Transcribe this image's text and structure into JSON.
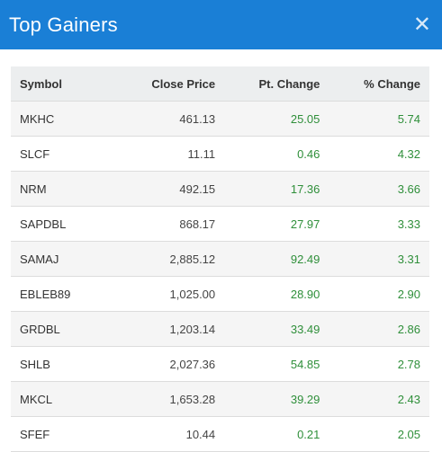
{
  "header": {
    "title": "Top Gainers",
    "close_icon": "close-icon"
  },
  "table": {
    "columns": [
      "Symbol",
      "Close Price",
      "Pt. Change",
      "% Change"
    ],
    "rows": [
      {
        "symbol": "MKHC",
        "close": "461.13",
        "pt": "25.05",
        "pct": "5.74"
      },
      {
        "symbol": "SLCF",
        "close": "11.11",
        "pt": "0.46",
        "pct": "4.32"
      },
      {
        "symbol": "NRM",
        "close": "492.15",
        "pt": "17.36",
        "pct": "3.66"
      },
      {
        "symbol": "SAPDBL",
        "close": "868.17",
        "pt": "27.97",
        "pct": "3.33"
      },
      {
        "symbol": "SAMAJ",
        "close": "2,885.12",
        "pt": "92.49",
        "pct": "3.31"
      },
      {
        "symbol": "EBLEB89",
        "close": "1,025.00",
        "pt": "28.90",
        "pct": "2.90"
      },
      {
        "symbol": "GRDBL",
        "close": "1,203.14",
        "pt": "33.49",
        "pct": "2.86"
      },
      {
        "symbol": "SHLB",
        "close": "2,027.36",
        "pt": "54.85",
        "pct": "2.78"
      },
      {
        "symbol": "MKCL",
        "close": "1,653.28",
        "pt": "39.29",
        "pct": "2.43"
      },
      {
        "symbol": "SFEF",
        "close": "10.44",
        "pt": "0.21",
        "pct": "2.05"
      }
    ]
  },
  "colors": {
    "header_bg": "#1a7fd6",
    "positive": "#2f8f3a",
    "stripe": "#f5f5f5"
  }
}
